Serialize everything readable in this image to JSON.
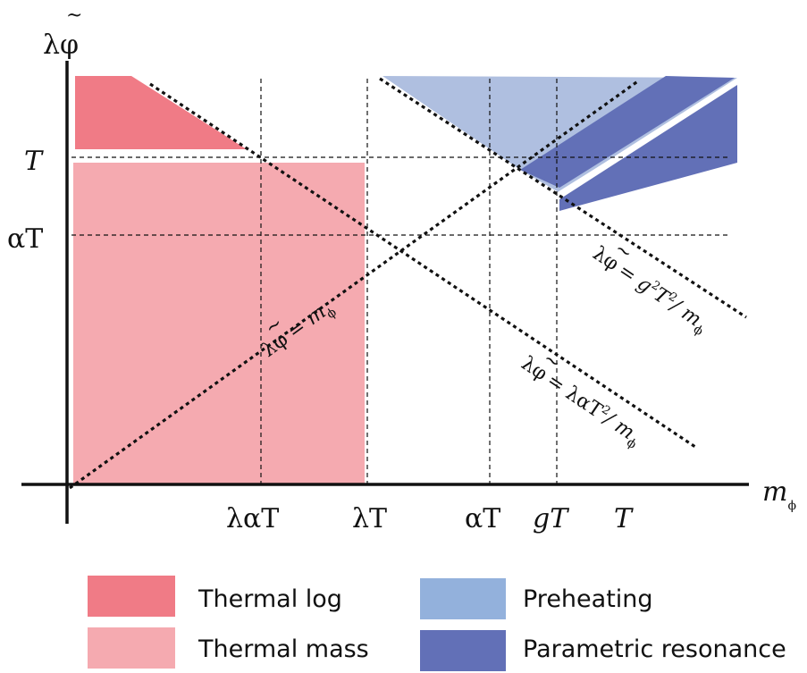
{
  "colors": {
    "thermal_log": "#f07b86",
    "thermal_mass": "#f5aab0",
    "preheating": "#afbfe0",
    "parametric_resonance": "#6270b7",
    "legend_preheating": "#93b1dc"
  },
  "axes": {
    "y_label_main": "λφ",
    "y_label_tilde": "~",
    "x_label_main": "m",
    "x_label_sub": "ϕ",
    "y_ticks": [
      {
        "label": "T"
      },
      {
        "label": "αT"
      }
    ],
    "x_ticks": [
      {
        "label": "λαT"
      },
      {
        "label": "λT"
      },
      {
        "label": "αT"
      },
      {
        "label": "gT"
      },
      {
        "label": "T"
      }
    ]
  },
  "lines": {
    "l1": {
      "lhs": "λφ",
      "tilde": "~",
      "rhs_main": "= m",
      "rhs_sub": "ϕ"
    },
    "l2": {
      "lhs": "λφ",
      "tilde": "~",
      "rhs_a": "= g",
      "sup1": "2",
      "rhs_b": "T",
      "sup2": "2",
      "rhs_c": "/ m",
      "rhs_sub": "ϕ"
    },
    "l3": {
      "lhs": "λφ",
      "tilde": "~",
      "rhs_a": "= λαT",
      "sup1": "2",
      "rhs_c": "/ m",
      "rhs_sub": "ϕ"
    }
  },
  "legend": [
    {
      "label": "Thermal log",
      "color_key": "thermal_log"
    },
    {
      "label": "Thermal mass",
      "color_key": "thermal_mass"
    },
    {
      "label": "Preheating",
      "color_key": "legend_preheating"
    },
    {
      "label": "Parametric resonance",
      "color_key": "parametric_resonance"
    }
  ]
}
